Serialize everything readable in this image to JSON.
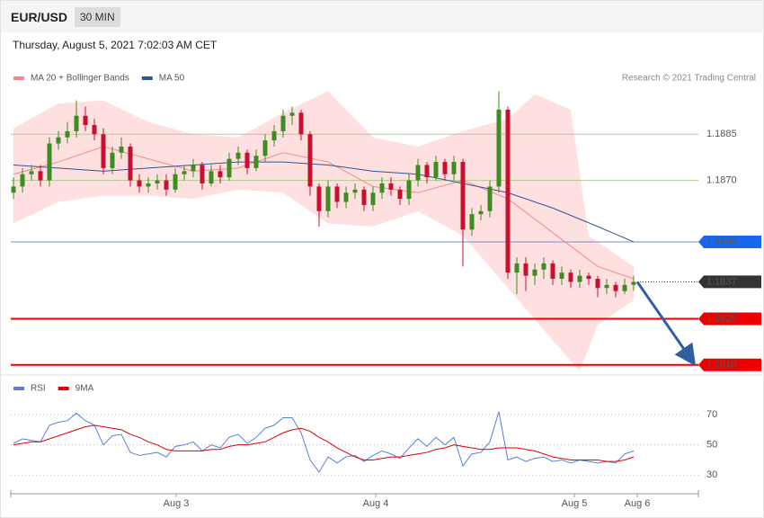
{
  "header": {
    "symbol": "EUR/USD",
    "interval": "30 MIN",
    "datetime": "Thursday, August 5, 2021 7:02:03 AM CET",
    "credit": "Research © 2021 Trading Central"
  },
  "chart_data": [
    {
      "type": "candlestick",
      "up_color": "#3c8c1f",
      "down_color": "#c8102e",
      "ylim": [
        1.1807,
        1.19
      ],
      "open": [
        1.1866,
        1.1868,
        1.1872,
        1.1873,
        1.187,
        1.1882,
        1.1884,
        1.1886,
        1.1891,
        1.1888,
        1.1885,
        1.1874,
        1.1879,
        1.1881,
        1.187,
        1.1868,
        1.1869,
        1.187,
        1.1867,
        1.1872,
        1.1873,
        1.1875,
        1.1869,
        1.1873,
        1.1871,
        1.1877,
        1.1879,
        1.1874,
        1.1878,
        1.1883,
        1.1886,
        1.1891,
        1.1892,
        1.1885,
        1.1868,
        1.186,
        1.1868,
        1.1863,
        1.1866,
        1.1867,
        1.1862,
        1.1866,
        1.1869,
        1.1867,
        1.1864,
        1.187,
        1.1875,
        1.1871,
        1.1876,
        1.1872,
        1.1876,
        1.1854,
        1.1859,
        1.186,
        1.1868,
        1.1893,
        1.184,
        1.1843,
        1.1839,
        1.1841,
        1.1843,
        1.1838,
        1.184,
        1.1837,
        1.1839,
        1.1838,
        1.1835,
        1.1836,
        1.1834,
        1.1836
      ],
      "high": [
        1.1871,
        1.1874,
        1.1875,
        1.1875,
        1.1884,
        1.1886,
        1.1889,
        1.1896,
        1.1894,
        1.189,
        1.1887,
        1.1881,
        1.1884,
        1.1882,
        1.1872,
        1.1871,
        1.1872,
        1.1872,
        1.1874,
        1.1875,
        1.1877,
        1.1876,
        1.1875,
        1.1875,
        1.1879,
        1.1881,
        1.188,
        1.188,
        1.1885,
        1.1888,
        1.1893,
        1.1894,
        1.1893,
        1.1886,
        1.1869,
        1.187,
        1.1869,
        1.1868,
        1.1869,
        1.1868,
        1.1868,
        1.1871,
        1.1871,
        1.1868,
        1.1872,
        1.1877,
        1.1876,
        1.1878,
        1.1877,
        1.1878,
        1.1877,
        1.1861,
        1.1862,
        1.187,
        1.1899,
        1.1894,
        1.1845,
        1.1845,
        1.1843,
        1.1845,
        1.1844,
        1.1842,
        1.1841,
        1.1841,
        1.184,
        1.1839,
        1.1838,
        1.1837,
        1.1838,
        1.1839
      ],
      "low": [
        1.1864,
        1.1866,
        1.187,
        1.1868,
        1.1868,
        1.188,
        1.1882,
        1.1884,
        1.1886,
        1.1883,
        1.1872,
        1.1872,
        1.1877,
        1.1868,
        1.1866,
        1.1866,
        1.1867,
        1.1865,
        1.1866,
        1.187,
        1.1871,
        1.1867,
        1.1868,
        1.1869,
        1.187,
        1.1875,
        1.1872,
        1.1873,
        1.1876,
        1.1881,
        1.1884,
        1.1888,
        1.1883,
        1.1865,
        1.1855,
        1.1858,
        1.1861,
        1.1861,
        1.1864,
        1.186,
        1.186,
        1.1864,
        1.1865,
        1.1862,
        1.1862,
        1.1868,
        1.1869,
        1.187,
        1.187,
        1.187,
        1.1842,
        1.1852,
        1.1857,
        1.1858,
        1.1866,
        1.1838,
        1.1833,
        1.1834,
        1.1836,
        1.1838,
        1.1836,
        1.1836,
        1.1835,
        1.1835,
        1.1836,
        1.1832,
        1.1833,
        1.1832,
        1.1833,
        1.1834
      ],
      "close": [
        1.1868,
        1.1872,
        1.1873,
        1.187,
        1.1882,
        1.1884,
        1.1886,
        1.1891,
        1.1888,
        1.1885,
        1.1874,
        1.1879,
        1.1881,
        1.187,
        1.1868,
        1.1869,
        1.187,
        1.1867,
        1.1872,
        1.1873,
        1.1875,
        1.1869,
        1.1873,
        1.1871,
        1.1877,
        1.1879,
        1.1874,
        1.1878,
        1.1883,
        1.1886,
        1.1891,
        1.1892,
        1.1885,
        1.1868,
        1.186,
        1.1868,
        1.1863,
        1.1866,
        1.1867,
        1.1862,
        1.1866,
        1.1869,
        1.1867,
        1.1864,
        1.187,
        1.1875,
        1.1871,
        1.1876,
        1.1872,
        1.1876,
        1.1854,
        1.1859,
        1.186,
        1.1868,
        1.1893,
        1.184,
        1.1843,
        1.1839,
        1.1841,
        1.1843,
        1.1838,
        1.184,
        1.1837,
        1.1839,
        1.1838,
        1.1835,
        1.1836,
        1.1834,
        1.1836,
        1.1837
      ],
      "bands": {
        "color": "#ffe0e0",
        "x_upper": [
          0,
          5,
          10,
          15,
          20,
          25,
          30,
          35,
          40,
          45,
          50,
          55,
          58,
          62,
          64,
          69
        ],
        "upper": [
          1.1887,
          1.1895,
          1.1896,
          1.1889,
          1.1885,
          1.1884,
          1.1892,
          1.1899,
          1.1884,
          1.1881,
          1.1886,
          1.189,
          1.1898,
          1.1893,
          1.1852,
          1.1842
        ],
        "x_lower": [
          0,
          5,
          10,
          15,
          20,
          25,
          30,
          35,
          40,
          45,
          50,
          55,
          60,
          63,
          65,
          69
        ],
        "lower": [
          1.1856,
          1.1863,
          1.1865,
          1.1865,
          1.1864,
          1.1867,
          1.1866,
          1.1856,
          1.1855,
          1.186,
          1.1852,
          1.1835,
          1.1818,
          1.1808,
          1.1823,
          1.1831
        ]
      },
      "series": [
        {
          "name": "MA 20 + Bollinger Bands",
          "color": "#f08a8a",
          "x": [
            0,
            5,
            10,
            15,
            20,
            25,
            30,
            35,
            40,
            45,
            50,
            55,
            60,
            65,
            69
          ],
          "values": [
            1.1872,
            1.1876,
            1.1881,
            1.1877,
            1.1873,
            1.1874,
            1.1879,
            1.1876,
            1.1868,
            1.1866,
            1.187,
            1.1864,
            1.1853,
            1.1842,
            1.1838
          ]
        },
        {
          "name": "MA 50",
          "color": "#2f5597",
          "x": [
            0,
            5,
            10,
            15,
            20,
            25,
            30,
            35,
            40,
            45,
            50,
            55,
            60,
            65,
            69
          ],
          "values": [
            1.1875,
            1.1874,
            1.1873,
            1.1874,
            1.1875,
            1.1876,
            1.1876,
            1.1875,
            1.1873,
            1.1872,
            1.1869,
            1.1866,
            1.1861,
            1.1855,
            1.185
          ]
        }
      ],
      "levels": [
        {
          "value": 1.1885,
          "color": "#a9d18e",
          "text_color": "#5a9e1a",
          "line": "solid"
        },
        {
          "value": 1.187,
          "label": "1.1870",
          "color": "#a9d18e",
          "text_color": "#5a9e1a",
          "line": "solid"
        },
        {
          "value": 1.185,
          "label": "1.1850",
          "color": "#6f8fdc",
          "box": "#1a66f0",
          "line": "solid"
        },
        {
          "value": 1.1837,
          "color": "#333333",
          "box": "#333333",
          "line": "dotted"
        },
        {
          "value": 1.1825,
          "color": "#ee0000",
          "box": "#ee0000",
          "line": "thick"
        },
        {
          "value": 1.181,
          "label": "1.1810",
          "color": "#ee0000",
          "box": "#ee0000",
          "line": "thick"
        }
      ]
    },
    {
      "type": "line",
      "ylim": [
        20,
        82
      ],
      "yticks": [
        30,
        50,
        70
      ],
      "grid": true,
      "xlim": [
        -0.3,
        76.2
      ],
      "xticks": [
        {
          "value": 18.1,
          "label": "Aug 3"
        },
        {
          "value": 40.3,
          "label": "Aug 4"
        },
        {
          "value": 62.4,
          "label": "Aug 5"
        },
        {
          "value": 69.4,
          "label": "Aug 6"
        }
      ],
      "series": [
        {
          "name": "RSI",
          "color": "#5b7fd6",
          "values": [
            51,
            54,
            53,
            52,
            63,
            65,
            66,
            71,
            66,
            63,
            50,
            56,
            57,
            45,
            43,
            44,
            45,
            42,
            49,
            50,
            52,
            46,
            50,
            48,
            55,
            57,
            51,
            55,
            61,
            63,
            68,
            68,
            58,
            40,
            32,
            42,
            38,
            42,
            43,
            39,
            43,
            46,
            44,
            41,
            48,
            54,
            49,
            55,
            50,
            55,
            36,
            44,
            45,
            52,
            72,
            40,
            42,
            39,
            41,
            42,
            39,
            40,
            38,
            40,
            39,
            38,
            39,
            38,
            44,
            46
          ]
        },
        {
          "name": "9MA",
          "color": "#e00000",
          "values": [
            50,
            51,
            52,
            52,
            54,
            56,
            58,
            60,
            62,
            63,
            62,
            61,
            60,
            57,
            55,
            52,
            50,
            47,
            46,
            46,
            46,
            46,
            47,
            47,
            49,
            50,
            50,
            51,
            52,
            55,
            58,
            60,
            61,
            59,
            55,
            52,
            48,
            45,
            42,
            40,
            40,
            41,
            42,
            42,
            43,
            44,
            45,
            47,
            48,
            50,
            49,
            48,
            47,
            47,
            48,
            48,
            48,
            47,
            46,
            44,
            42,
            41,
            40,
            40,
            40,
            40,
            39,
            39,
            40,
            42
          ]
        }
      ]
    }
  ]
}
